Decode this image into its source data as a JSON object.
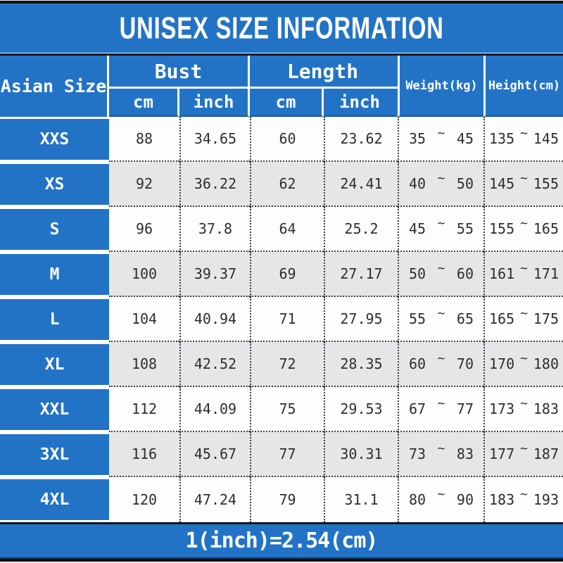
{
  "chart_data": {
    "type": "table",
    "title": "UNISEX SIZE INFORMATION",
    "range_separator": "~",
    "column_groups": [
      {
        "label": "Asian Size",
        "colspan": 1
      },
      {
        "label": "Bust",
        "colspan": 2
      },
      {
        "label": "Length",
        "colspan": 2
      },
      {
        "label": "Weight(kg)",
        "colspan": 1
      },
      {
        "label": "Height(cm)",
        "colspan": 1
      }
    ],
    "sub_columns": [
      "cm",
      "inch",
      "cm",
      "inch"
    ],
    "rows": [
      {
        "size": "XXS",
        "bust_cm": 88,
        "bust_inch": 34.65,
        "length_cm": 60,
        "length_inch": 23.62,
        "weight_kg": [
          35,
          45
        ],
        "height_cm": [
          135,
          145
        ]
      },
      {
        "size": "XS",
        "bust_cm": 92,
        "bust_inch": 36.22,
        "length_cm": 62,
        "length_inch": 24.41,
        "weight_kg": [
          40,
          50
        ],
        "height_cm": [
          145,
          155
        ]
      },
      {
        "size": "S",
        "bust_cm": 96,
        "bust_inch": 37.8,
        "length_cm": 64,
        "length_inch": 25.2,
        "weight_kg": [
          45,
          55
        ],
        "height_cm": [
          155,
          165
        ]
      },
      {
        "size": "M",
        "bust_cm": 100,
        "bust_inch": 39.37,
        "length_cm": 69,
        "length_inch": 27.17,
        "weight_kg": [
          50,
          60
        ],
        "height_cm": [
          161,
          171
        ]
      },
      {
        "size": "L",
        "bust_cm": 104,
        "bust_inch": 40.94,
        "length_cm": 71,
        "length_inch": 27.95,
        "weight_kg": [
          55,
          65
        ],
        "height_cm": [
          165,
          175
        ]
      },
      {
        "size": "XL",
        "bust_cm": 108,
        "bust_inch": 42.52,
        "length_cm": 72,
        "length_inch": 28.35,
        "weight_kg": [
          60,
          70
        ],
        "height_cm": [
          170,
          180
        ]
      },
      {
        "size": "XXL",
        "bust_cm": 112,
        "bust_inch": 44.09,
        "length_cm": 75,
        "length_inch": 29.53,
        "weight_kg": [
          67,
          77
        ],
        "height_cm": [
          173,
          183
        ]
      },
      {
        "size": "3XL",
        "bust_cm": 116,
        "bust_inch": 45.67,
        "length_cm": 77,
        "length_inch": 30.31,
        "weight_kg": [
          73,
          83
        ],
        "height_cm": [
          177,
          187
        ]
      },
      {
        "size": "4XL",
        "bust_cm": 120,
        "bust_inch": 47.24,
        "length_cm": 79,
        "length_inch": 31.1,
        "weight_kg": [
          80,
          90
        ],
        "height_cm": [
          183,
          193
        ]
      }
    ],
    "footnote": "1(inch)=2.54(cm)"
  },
  "colors": {
    "primary_blue": "#2273c6",
    "row_alt_gray": "#e6e5e7",
    "row_white": "#fdfdfd",
    "text_dark": "#2e2e2e",
    "border_black": "#121212"
  }
}
